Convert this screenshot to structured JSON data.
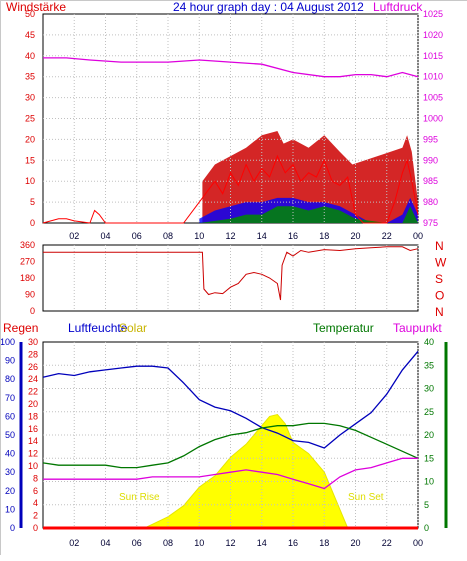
{
  "title": "24 hour graph day : 04 August 2012",
  "colors": {
    "wind": "#ff0000",
    "gust": "#cc0000",
    "windAvg": "#0000ff",
    "windMin": "#008800",
    "pressure": "#dd00dd",
    "direction": "#cc0000",
    "humidity": "#0000bb",
    "temperature": "#007700",
    "dewpoint": "#dd00dd",
    "solar": "#ffff00",
    "rain": "#ff0000"
  },
  "time_ticks": [
    "02",
    "04",
    "06",
    "08",
    "10",
    "12",
    "14",
    "16",
    "18",
    "20",
    "22",
    "00"
  ],
  "labels": {
    "wind": "Windstärke",
    "pressure": "Luftdruck",
    "rain": "Regen",
    "humidity": "Luftfeuchte",
    "solar": "Solar",
    "temperature": "Temperatur",
    "dewpoint": "Taupunkt",
    "sunrise": "Sun Rise",
    "sunset": "Sun Set"
  },
  "chart_data": [
    {
      "type": "line",
      "name": "wind-pressure",
      "x_range": [
        0,
        24
      ],
      "y_left": {
        "label": "Windstärke",
        "range": [
          0,
          50
        ],
        "ticks": [
          "0",
          "5",
          "10",
          "15",
          "20",
          "25",
          "30",
          "35",
          "40",
          "45",
          "50"
        ]
      },
      "y_right": {
        "label": "Luftdruck",
        "range": [
          975,
          1025
        ],
        "ticks": [
          "975",
          "980",
          "985",
          "990",
          "995",
          "1000",
          "1005",
          "1010",
          "1015",
          "1020",
          "1025"
        ]
      },
      "series": [
        {
          "role": "pressure",
          "axis": "right",
          "x": [
            0,
            1.5,
            3,
            5,
            8,
            10,
            12,
            14,
            16,
            18,
            19,
            20,
            21,
            22,
            23,
            24
          ],
          "values": [
            1014.5,
            1014.5,
            1014,
            1013.5,
            1013.5,
            1014,
            1013.5,
            1013,
            1011,
            1010,
            1010,
            1010.5,
            1010.5,
            1010,
            1011,
            1010
          ]
        },
        {
          "role": "wind",
          "axis": "left",
          "x": [
            0,
            1,
            1.5,
            2,
            3,
            3.3,
            3.6,
            4,
            9,
            10.2,
            10.6,
            11,
            11.5,
            12,
            12.5,
            13,
            13.5,
            14,
            14.5,
            15,
            15.5,
            16,
            16.5,
            17,
            17.5,
            18,
            18.5,
            19,
            19.5,
            20,
            20.5,
            21,
            21.5,
            22,
            22.5,
            23,
            23.3,
            23.6,
            24
          ],
          "values": [
            0,
            1,
            1,
            0.5,
            0,
            3,
            2,
            0,
            0,
            6,
            8,
            10,
            7,
            12,
            9,
            14,
            10,
            13,
            11,
            16,
            12,
            14,
            10,
            12,
            11,
            15,
            10,
            9,
            11,
            2,
            0,
            0,
            0,
            0,
            5,
            12,
            15,
            10,
            2
          ]
        },
        {
          "role": "gust",
          "axis": "left",
          "x": [
            10.2,
            11,
            12,
            13,
            14,
            15,
            15.4,
            16,
            17,
            18,
            19,
            19.8,
            23,
            23.3,
            23.6,
            24
          ],
          "values": [
            10,
            14,
            16,
            18,
            21,
            22,
            19,
            20,
            18,
            21,
            17,
            14,
            18,
            21,
            17,
            5
          ]
        },
        {
          "role": "wind-average",
          "axis": "left",
          "x": [
            10,
            11,
            12,
            13,
            14,
            15,
            16,
            17,
            18,
            19,
            20,
            21,
            22,
            23,
            23.5,
            24
          ],
          "values": [
            1,
            3,
            4,
            5,
            5,
            6,
            6,
            5,
            5,
            4,
            2,
            0,
            0,
            2,
            6,
            2
          ]
        },
        {
          "role": "wind-min",
          "axis": "left",
          "x": [
            10,
            12,
            13,
            14,
            15,
            16,
            17,
            18,
            19,
            20,
            22,
            23,
            23.5,
            24
          ],
          "values": [
            0,
            1,
            2,
            2,
            4,
            4,
            3,
            4,
            3,
            1,
            0,
            0,
            4,
            0
          ]
        }
      ]
    },
    {
      "type": "line",
      "name": "wind-direction",
      "x_range": [
        0,
        24
      ],
      "y_left": {
        "range": [
          0,
          360
        ],
        "ticks": [
          "0",
          "90",
          "180",
          "270",
          "360"
        ]
      },
      "y_right": {
        "ticks": [
          "N",
          "W",
          "S",
          "O",
          "N"
        ]
      },
      "series": [
        {
          "role": "direction",
          "x": [
            0,
            10.2,
            10.3,
            10.6,
            11,
            11.5,
            12,
            12.5,
            13,
            13.5,
            14,
            14.5,
            15,
            15.2,
            15.3,
            15.6,
            16,
            16.5,
            17,
            18,
            19,
            20,
            21,
            22,
            23,
            23.5,
            24
          ],
          "values": [
            320,
            320,
            120,
            90,
            100,
            95,
            130,
            150,
            200,
            210,
            200,
            180,
            150,
            60,
            250,
            320,
            300,
            330,
            320,
            335,
            330,
            340,
            345,
            350,
            350,
            330,
            340
          ]
        }
      ]
    },
    {
      "type": "line",
      "name": "climate",
      "x_range": [
        0,
        24
      ],
      "axes": {
        "humidity": {
          "label": "Luftfeuchte",
          "range": [
            0,
            100
          ],
          "ticks": [
            "0",
            "10",
            "20",
            "30",
            "40",
            "50",
            "60",
            "70",
            "80",
            "90",
            "100"
          ]
        },
        "rain": {
          "label": "Regen",
          "range": [
            0,
            30
          ],
          "ticks": [
            "0",
            "2",
            "4",
            "6",
            "8",
            "10",
            "12",
            "14",
            "16",
            "18",
            "20",
            "22",
            "24",
            "26",
            "28",
            "30"
          ]
        },
        "temperature": {
          "label": "Temperatur",
          "range": [
            0,
            40
          ],
          "ticks": [
            "0",
            "5",
            "10",
            "15",
            "20",
            "25",
            "30",
            "35",
            "40"
          ]
        }
      },
      "series": [
        {
          "role": "solar",
          "axis": "humidity",
          "x": [
            6.5,
            7,
            8,
            9,
            10,
            11,
            12,
            13,
            14,
            14.5,
            15,
            15.5,
            16,
            17,
            18,
            19,
            19.5
          ],
          "values": [
            0,
            2,
            6,
            12,
            22,
            28,
            38,
            45,
            55,
            60,
            61,
            56,
            46,
            40,
            30,
            10,
            0
          ]
        },
        {
          "role": "humidity",
          "axis": "humidity",
          "x": [
            0,
            1,
            2,
            3,
            4,
            5,
            6,
            7,
            8,
            9,
            10,
            11,
            12,
            13,
            14,
            15,
            16,
            17,
            18,
            19,
            20,
            21,
            22,
            23,
            24
          ],
          "values": [
            81,
            83,
            82,
            84,
            85,
            86,
            87,
            87,
            86,
            78,
            69,
            65,
            63,
            59,
            54,
            51,
            47,
            46,
            43,
            50,
            56,
            62,
            72,
            85,
            95
          ]
        },
        {
          "role": "temperature",
          "axis": "temperature",
          "x": [
            0,
            1,
            2,
            3,
            4,
            5,
            6,
            7,
            8,
            9,
            10,
            11,
            12,
            13,
            14,
            15,
            16,
            17,
            18,
            19,
            20,
            21,
            22,
            23,
            24
          ],
          "values": [
            14,
            13.5,
            13.5,
            13.5,
            13.5,
            13,
            13,
            13.5,
            14,
            15.5,
            17.5,
            19,
            20,
            20.5,
            21.5,
            22,
            22,
            22.5,
            22.5,
            22,
            21,
            19.5,
            18,
            16.5,
            15
          ]
        },
        {
          "role": "dewpoint",
          "axis": "temperature",
          "x": [
            0,
            1,
            2,
            3,
            4,
            5,
            6,
            7,
            8,
            9,
            10,
            11,
            12,
            13,
            14,
            15,
            16,
            17,
            18,
            19,
            20,
            21,
            22,
            23,
            24
          ],
          "values": [
            10.5,
            10.5,
            10.5,
            10.5,
            10.5,
            10.5,
            10.5,
            11,
            11,
            11,
            11,
            11.5,
            12,
            12.5,
            12,
            11.5,
            10.5,
            9.5,
            8.5,
            11,
            12.5,
            13,
            14,
            15,
            15
          ]
        },
        {
          "role": "rain",
          "axis": "rain",
          "x": [
            0,
            24
          ],
          "values": [
            0,
            0
          ]
        }
      ]
    }
  ]
}
